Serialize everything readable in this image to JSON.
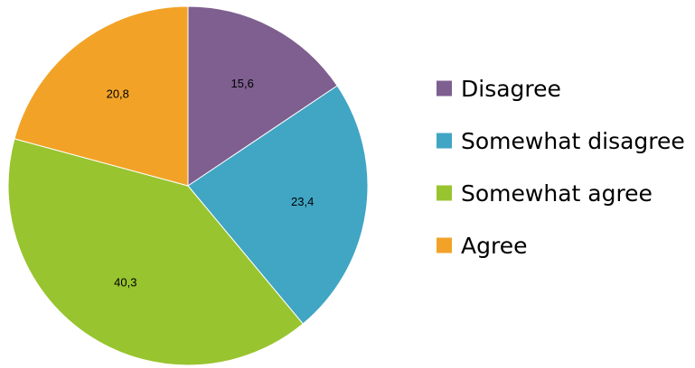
{
  "chart_data": {
    "type": "pie",
    "categories": [
      "Disagree",
      "Somewhat disagree",
      "Somewhat agree",
      "Agree"
    ],
    "values": [
      15.6,
      23.4,
      40.3,
      20.8
    ],
    "value_labels": [
      "15,6",
      "23,4",
      "40,3",
      "20,8"
    ],
    "colors": [
      "#7e5f8f",
      "#41a5c4",
      "#98c42f",
      "#f2a327"
    ],
    "start_angle": "12 o'clock",
    "direction": "clockwise",
    "legend_position": "right",
    "title": ""
  }
}
